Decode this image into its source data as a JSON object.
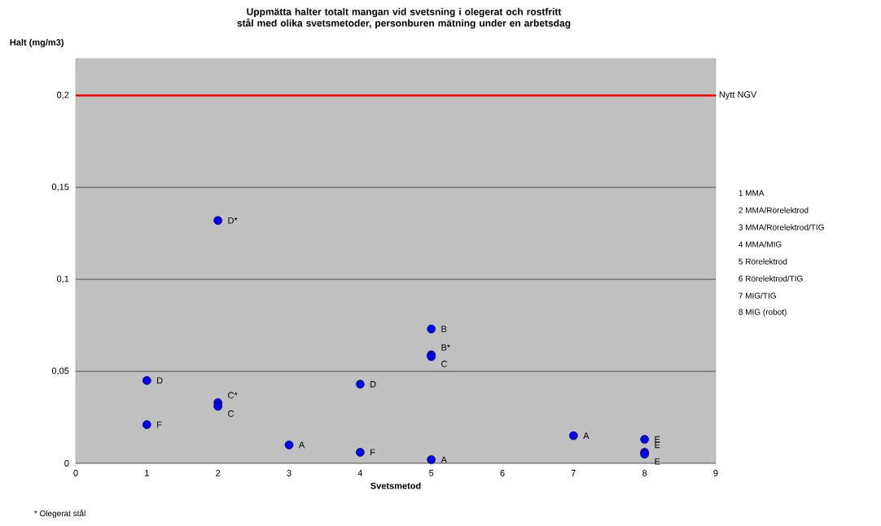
{
  "chart_data": {
    "type": "scatter",
    "title": "Uppmätta halter totalt mangan vid svetsning i olegerat och rostfritt stål med olika svetsmetoder, personburen mätning under en arbetsdag",
    "xlabel": "Svetsmetod",
    "ylabel": "Halt (mg/m3)",
    "x": [
      1,
      1,
      2,
      2,
      2,
      3,
      4,
      4,
      5,
      5,
      5,
      5,
      7,
      8,
      8,
      8
    ],
    "values": [
      0.045,
      0.021,
      0.132,
      0.033,
      0.031,
      0.01,
      0.043,
      0.006,
      0.073,
      0.059,
      0.058,
      0.002,
      0.015,
      0.013,
      0.006,
      0.005
    ],
    "color": "#0000ff",
    "marker": "circle",
    "grid": "y",
    "xlim": [
      0,
      9
    ],
    "xticks": [
      0,
      1,
      2,
      3,
      4,
      5,
      6,
      7,
      8,
      9
    ],
    "ylim": [
      0,
      0.22
    ],
    "yticks": [
      0,
      {
        "value": 0.05,
        "label": "0,05"
      },
      {
        "value": 0.1,
        "label": "0,1"
      },
      {
        "value": 0.15,
        "label": "0,15"
      },
      {
        "value": 0.2,
        "label": "0,2"
      }
    ],
    "ref_lines": [
      {
        "axis": "y",
        "value": 0.2,
        "label": "Nytt NGV",
        "color": "#ff0000"
      }
    ],
    "annotations": [
      {
        "text": "D",
        "x": 1,
        "y": 0.045
      },
      {
        "text": "F",
        "x": 1,
        "y": 0.021
      },
      {
        "text": "D*",
        "x": 2,
        "y": 0.132
      },
      {
        "text": "C*",
        "x": 2,
        "y": 0.033
      },
      {
        "text": "C",
        "x": 2,
        "y": 0.031
      },
      {
        "text": "A",
        "x": 3,
        "y": 0.01
      },
      {
        "text": "D",
        "x": 4,
        "y": 0.043
      },
      {
        "text": "F",
        "x": 4,
        "y": 0.006
      },
      {
        "text": "B",
        "x": 5,
        "y": 0.073
      },
      {
        "text": "B*",
        "x": 5,
        "y": 0.059
      },
      {
        "text": "C",
        "x": 5,
        "y": 0.058
      },
      {
        "text": "A",
        "x": 5,
        "y": 0.002
      },
      {
        "text": "A",
        "x": 7,
        "y": 0.015
      },
      {
        "text": "E",
        "x": 8,
        "y": 0.013
      },
      {
        "text": "E",
        "x": 8,
        "y": 0.006
      },
      {
        "text": "E",
        "x": 8,
        "y": 0.005
      },
      "1 MMA",
      "2 MMA/Rörelektrod",
      "3 MMA/Rörelektrod/TIG",
      "4 MMA/MIG",
      "5 Rörelektrod",
      "6 Rörelektrod/TIG",
      "7 MIG/TIG",
      "8 MIG (robot)",
      "* Olegerat stål"
    ]
  }
}
